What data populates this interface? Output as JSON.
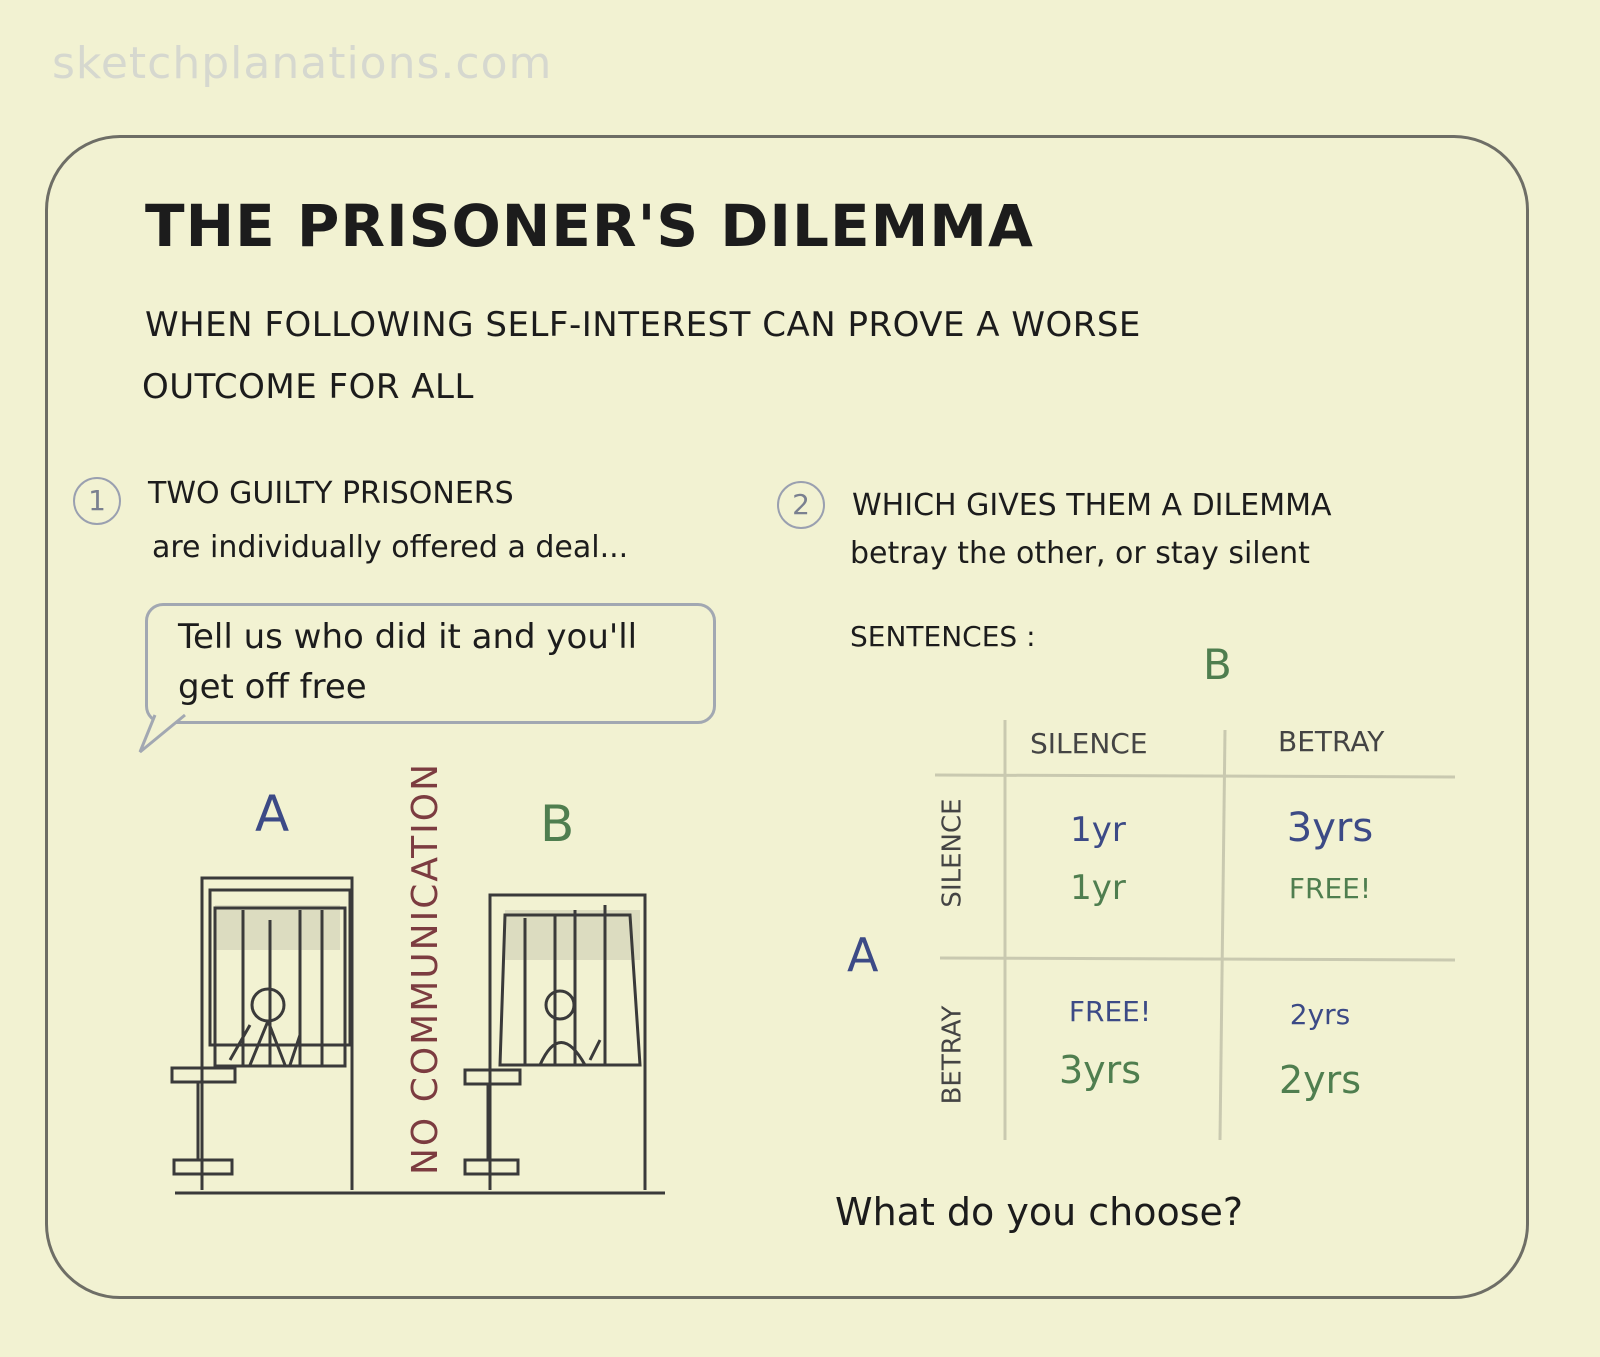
{
  "watermark": "sketchplanations.com",
  "title": "THE PRISONER'S DILEMMA",
  "subtitle_line1": "WHEN FOLLOWING SELF-INTEREST CAN PROVE A WORSE",
  "subtitle_line2": "OUTCOME FOR ALL",
  "section1": {
    "number": "1",
    "line1": "TWO GUILTY PRISONERS",
    "line2": "are individually offered a deal..."
  },
  "speech_bubble": "Tell us who did it and you'll get off free",
  "prisoners": {
    "a_label": "A",
    "b_label": "B",
    "separator": "NO COMMUNICATION"
  },
  "section2": {
    "number": "2",
    "line1": "WHICH GIVES THEM A DILEMMA",
    "line2": "betray the other, or stay silent"
  },
  "sentences_label": "SENTENCES :",
  "matrix": {
    "col_player": "B",
    "row_player": "A",
    "col_headers": [
      "SILENCE",
      "BETRAY"
    ],
    "row_headers": [
      "SILENCE",
      "BETRAY"
    ],
    "cells": [
      [
        {
          "a": "1yr",
          "b": "1yr"
        },
        {
          "a": "3yrs",
          "b": "FREE!"
        }
      ],
      [
        {
          "a": "FREE!",
          "b": "3yrs"
        },
        {
          "a": "2yrs",
          "b": "2yrs"
        }
      ]
    ]
  },
  "question": "What do you choose?",
  "colors": {
    "player_a": "#3c4a86",
    "player_b": "#4f7e4f",
    "separator": "#7c3c40",
    "background": "#f2f2d2"
  }
}
